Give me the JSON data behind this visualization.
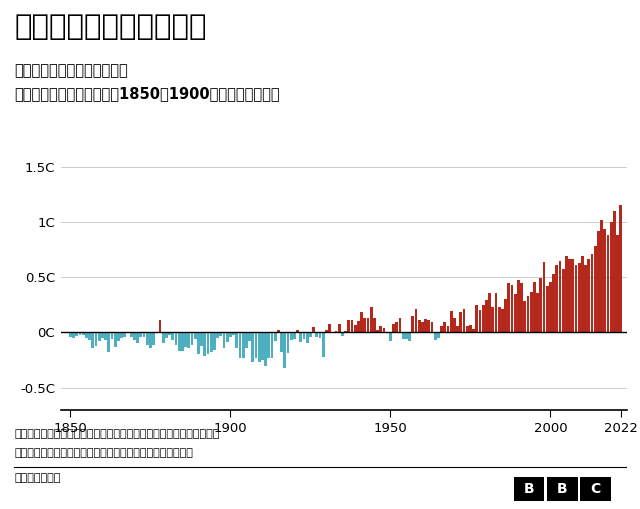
{
  "title": "地球温暖化は進んでいる",
  "subtitle_line1": "世界の年間平均気温の変化を",
  "subtitle_line2": "化石燃料の使用拡大以前（1850〜1900年）の水準と比較",
  "note_line1": "注：平均気温は英気象庁、米海洋大気庁、欧州中期気象予報センター",
  "note_line2": "日本気象庁および米バークレー・アースの各データから算出",
  "source": "出典：英気象庁",
  "yticks": [
    -0.5,
    0.0,
    0.5,
    1.0,
    1.5
  ],
  "ytick_labels": [
    "-0.5C",
    "0C",
    "0.5C",
    "1C",
    "1.5C"
  ],
  "xticks": [
    1850,
    1900,
    1950,
    2000,
    2022
  ],
  "ylim": [
    -0.7,
    1.58
  ],
  "xlim": [
    1847,
    2024
  ],
  "positive_color": "#b5291c",
  "negative_color": "#4eafc1",
  "grid_color": "#cccccc",
  "background_color": "#ffffff",
  "years": [
    1850,
    1851,
    1852,
    1853,
    1854,
    1855,
    1856,
    1857,
    1858,
    1859,
    1860,
    1861,
    1862,
    1863,
    1864,
    1865,
    1866,
    1867,
    1868,
    1869,
    1870,
    1871,
    1872,
    1873,
    1874,
    1875,
    1876,
    1877,
    1878,
    1879,
    1880,
    1881,
    1882,
    1883,
    1884,
    1885,
    1886,
    1887,
    1888,
    1889,
    1890,
    1891,
    1892,
    1893,
    1894,
    1895,
    1896,
    1897,
    1898,
    1899,
    1900,
    1901,
    1902,
    1903,
    1904,
    1905,
    1906,
    1907,
    1908,
    1909,
    1910,
    1911,
    1912,
    1913,
    1914,
    1915,
    1916,
    1917,
    1918,
    1919,
    1920,
    1921,
    1922,
    1923,
    1924,
    1925,
    1926,
    1927,
    1928,
    1929,
    1930,
    1931,
    1932,
    1933,
    1934,
    1935,
    1936,
    1937,
    1938,
    1939,
    1940,
    1941,
    1942,
    1943,
    1944,
    1945,
    1946,
    1947,
    1948,
    1949,
    1950,
    1951,
    1952,
    1953,
    1954,
    1955,
    1956,
    1957,
    1958,
    1959,
    1960,
    1961,
    1962,
    1963,
    1964,
    1965,
    1966,
    1967,
    1968,
    1969,
    1970,
    1971,
    1972,
    1973,
    1974,
    1975,
    1976,
    1977,
    1978,
    1979,
    1980,
    1981,
    1982,
    1983,
    1984,
    1985,
    1986,
    1987,
    1988,
    1989,
    1990,
    1991,
    1992,
    1993,
    1994,
    1995,
    1996,
    1997,
    1998,
    1999,
    2000,
    2001,
    2002,
    2003,
    2004,
    2005,
    2006,
    2007,
    2008,
    2009,
    2010,
    2011,
    2012,
    2013,
    2014,
    2015,
    2016,
    2017,
    2018,
    2019,
    2020,
    2021,
    2022
  ],
  "anomalies": [
    -0.04,
    -0.05,
    -0.03,
    -0.02,
    -0.02,
    -0.05,
    -0.07,
    -0.14,
    -0.12,
    -0.08,
    -0.05,
    -0.07,
    -0.18,
    -0.06,
    -0.13,
    -0.08,
    -0.05,
    -0.04,
    -0.01,
    -0.04,
    -0.07,
    -0.1,
    -0.04,
    -0.04,
    -0.11,
    -0.14,
    -0.11,
    -0.01,
    0.11,
    -0.1,
    -0.05,
    -0.02,
    -0.07,
    -0.11,
    -0.17,
    -0.17,
    -0.13,
    -0.14,
    -0.11,
    -0.06,
    -0.2,
    -0.12,
    -0.21,
    -0.2,
    -0.18,
    -0.16,
    -0.05,
    -0.03,
    -0.14,
    -0.09,
    -0.04,
    -0.02,
    -0.14,
    -0.23,
    -0.23,
    -0.14,
    -0.08,
    -0.27,
    -0.23,
    -0.27,
    -0.25,
    -0.3,
    -0.23,
    -0.23,
    -0.08,
    0.02,
    -0.18,
    -0.32,
    -0.19,
    -0.07,
    -0.06,
    0.02,
    -0.09,
    -0.06,
    -0.1,
    -0.04,
    0.05,
    -0.04,
    -0.05,
    -0.22,
    0.02,
    0.08,
    -0.01,
    0.01,
    0.08,
    -0.03,
    0.01,
    0.11,
    0.11,
    0.07,
    0.1,
    0.18,
    0.13,
    0.13,
    0.23,
    0.13,
    0.02,
    0.06,
    0.04,
    -0.01,
    -0.08,
    0.08,
    0.09,
    0.13,
    -0.06,
    -0.06,
    -0.08,
    0.15,
    0.21,
    0.11,
    0.09,
    0.12,
    0.11,
    0.09,
    -0.07,
    -0.05,
    0.06,
    0.09,
    0.06,
    0.19,
    0.13,
    0.06,
    0.18,
    0.21,
    0.06,
    0.07,
    0.03,
    0.25,
    0.2,
    0.25,
    0.29,
    0.36,
    0.23,
    0.36,
    0.23,
    0.21,
    0.3,
    0.45,
    0.43,
    0.35,
    0.47,
    0.45,
    0.28,
    0.33,
    0.37,
    0.46,
    0.36,
    0.49,
    0.64,
    0.42,
    0.46,
    0.53,
    0.61,
    0.65,
    0.57,
    0.69,
    0.66,
    0.66,
    0.61,
    0.63,
    0.69,
    0.61,
    0.66,
    0.71,
    0.78,
    0.92,
    1.02,
    0.94,
    0.88,
    1.0,
    1.1,
    0.88,
    1.15
  ]
}
